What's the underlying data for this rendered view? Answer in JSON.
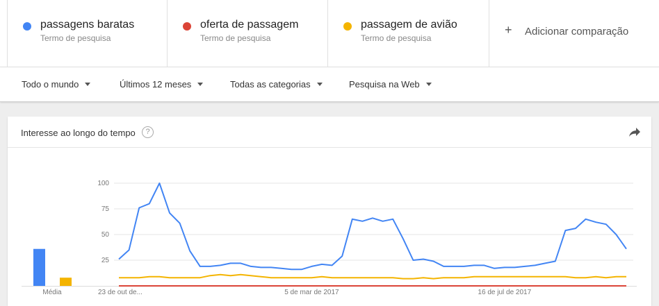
{
  "terms": [
    {
      "name": "passagens baratas",
      "sub": "Termo de pesquisa",
      "color": "#4285f4"
    },
    {
      "name": "oferta de passagem",
      "sub": "Termo de pesquisa",
      "color": "#db4437"
    },
    {
      "name": "passagem de avião",
      "sub": "Termo de pesquisa",
      "color": "#f4b400"
    }
  ],
  "add_compare": {
    "plus": "+",
    "label": "Adicionar comparação"
  },
  "filters": {
    "region": "Todo o mundo",
    "period": "Últimos 12 meses",
    "category": "Todas as categorias",
    "search_type": "Pesquisa na Web"
  },
  "card": {
    "title": "Interesse ao longo do tempo",
    "help": "?"
  },
  "icons": {
    "help": "help-circle-icon",
    "share": "share-arrow-icon",
    "caret": "caret-down-icon"
  },
  "chart_data": {
    "type": "line",
    "y_ticks": [
      100,
      75,
      50,
      25
    ],
    "ylim": [
      0,
      100
    ],
    "x_tick_labels": [
      {
        "label": "23 de out de...",
        "index": 0
      },
      {
        "label": "5 de mar de 2017",
        "index": 19
      },
      {
        "label": "16 de jul de 2017",
        "index": 38
      }
    ],
    "average_label": "Média",
    "averages": [
      {
        "name": "passagens baratas",
        "value": 36,
        "color": "#4285f4"
      },
      {
        "name": "passagem de avião",
        "value": 8,
        "color": "#f4b400"
      }
    ],
    "series": [
      {
        "name": "passagens baratas",
        "color": "#4285f4",
        "values": [
          26,
          35,
          76,
          80,
          100,
          71,
          61,
          34,
          19,
          19,
          20,
          22,
          22,
          19,
          18,
          18,
          17,
          16,
          16,
          19,
          21,
          20,
          29,
          65,
          63,
          66,
          63,
          65,
          46,
          25,
          26,
          24,
          19,
          19,
          19,
          20,
          20,
          17,
          18,
          18,
          19,
          20,
          22,
          24,
          54,
          56,
          65,
          62,
          60,
          50,
          36
        ]
      },
      {
        "name": "oferta de passagem",
        "color": "#db4437",
        "values": [
          0,
          0,
          0,
          0,
          0,
          0,
          0,
          0,
          0,
          0,
          0,
          0,
          0,
          0,
          0,
          0,
          0,
          0,
          0,
          0,
          0,
          0,
          0,
          0,
          0,
          0,
          0,
          0,
          0,
          0,
          0,
          0,
          0,
          0,
          0,
          0,
          0,
          0,
          0,
          0,
          0,
          0,
          0,
          0,
          0,
          0,
          0,
          0,
          0,
          0,
          0
        ]
      },
      {
        "name": "passagem de avião",
        "color": "#f4b400",
        "values": [
          8,
          8,
          8,
          9,
          9,
          8,
          8,
          8,
          8,
          10,
          11,
          10,
          11,
          10,
          9,
          8,
          8,
          8,
          8,
          8,
          9,
          8,
          8,
          8,
          8,
          8,
          8,
          8,
          7,
          7,
          8,
          7,
          8,
          8,
          8,
          9,
          9,
          9,
          9,
          9,
          9,
          9,
          9,
          9,
          9,
          8,
          8,
          9,
          8,
          9,
          9
        ]
      }
    ]
  }
}
